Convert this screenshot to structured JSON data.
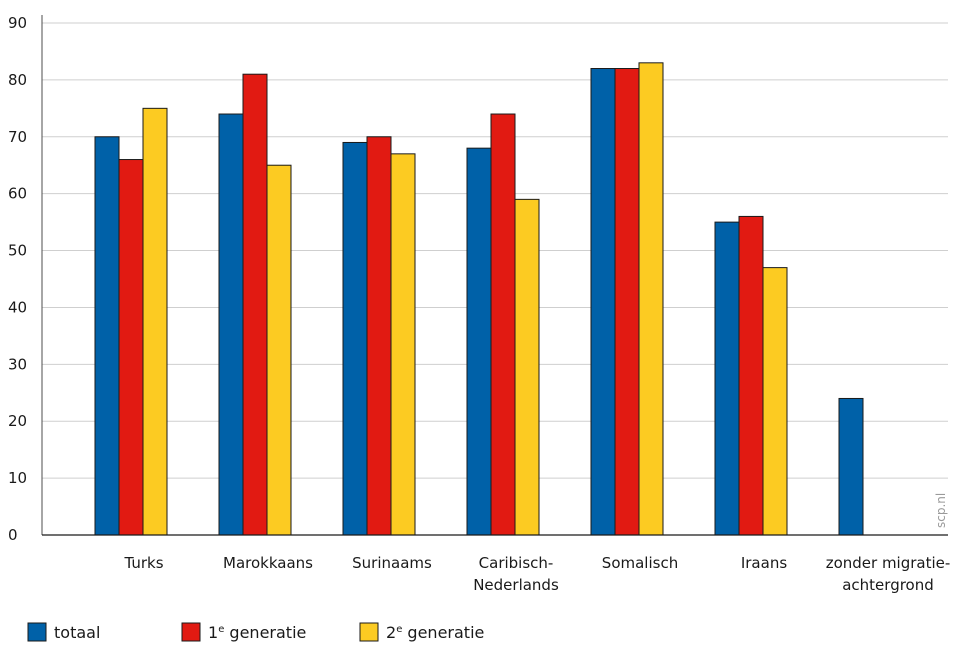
{
  "chart_data": {
    "type": "bar",
    "categories": [
      [
        "Turks"
      ],
      [
        "Marokkaans"
      ],
      [
        "Surinaams"
      ],
      [
        "Caribisch-",
        "Nederlands"
      ],
      [
        "Somalisch"
      ],
      [
        "Iraans"
      ],
      [
        "zonder migratie-",
        "achtergrond"
      ]
    ],
    "series": [
      {
        "name": "totaal",
        "color": "#0061a8",
        "values": [
          70,
          74,
          69,
          68,
          82,
          55,
          24
        ]
      },
      {
        "name": "1e generatie",
        "color": "#e11a12",
        "values": [
          66,
          81,
          70,
          74,
          82,
          56,
          null
        ]
      },
      {
        "name": "2e generatie",
        "color": "#fccb22",
        "values": [
          75,
          65,
          67,
          59,
          83,
          47,
          null
        ]
      }
    ],
    "legend_labels": [
      {
        "base": "totaal",
        "sup": "",
        "rest": ""
      },
      {
        "base": "1",
        "sup": "e",
        "rest": " generatie"
      },
      {
        "base": "2",
        "sup": "e",
        "rest": " generatie"
      }
    ],
    "yticks": [
      0,
      10,
      20,
      30,
      40,
      50,
      60,
      70,
      80,
      90
    ],
    "ylim": [
      0,
      90
    ],
    "grid": true,
    "legend_position": "bottom-left",
    "watermark": "scp.nl"
  }
}
